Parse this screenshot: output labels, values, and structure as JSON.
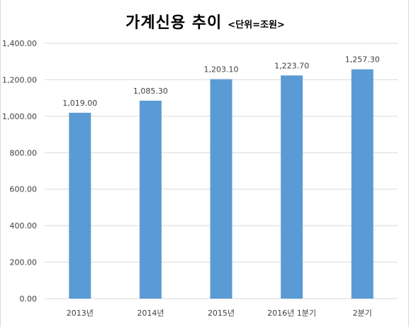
{
  "chart_data": {
    "type": "bar",
    "title": "가계신용 추이",
    "subtitle": "<단위=조원>",
    "xlabel": "",
    "ylabel": "",
    "categories": [
      "2013년",
      "2014년",
      "2015년",
      "2016년 1분기",
      "2분기"
    ],
    "values": [
      1019.0,
      1085.3,
      1203.1,
      1223.7,
      1257.3
    ],
    "value_labels": [
      "1,019.00",
      "1,085.30",
      "1,203.10",
      "1,223.70",
      "1,257.30"
    ],
    "ylim": [
      0,
      1400
    ],
    "yticks": [
      0,
      200,
      400,
      600,
      800,
      1000,
      1200,
      1400
    ],
    "ytick_labels": [
      "0.00",
      "200.00",
      "400.00",
      "600.00",
      "800.00",
      "1,000.00",
      "1,200.00",
      "1,400.00"
    ],
    "grid": true,
    "legend": "none",
    "bar_color": "#5b9bd5"
  }
}
